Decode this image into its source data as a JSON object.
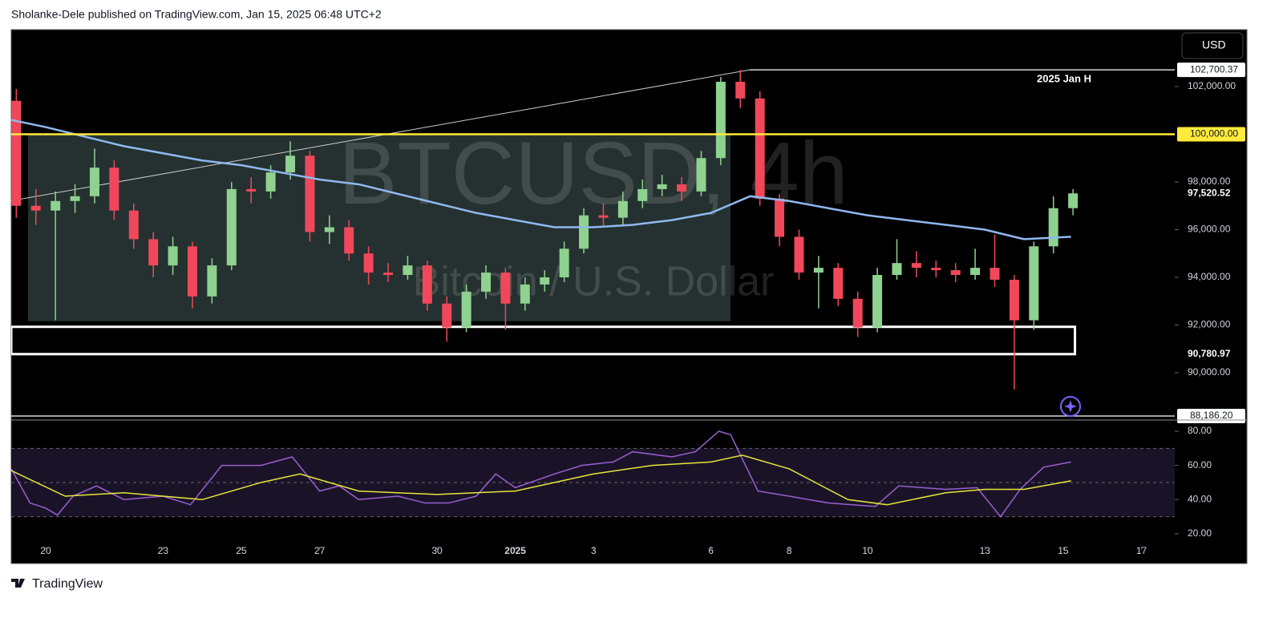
{
  "header": "Sholanke-Dele published on TradingView.com, Jan 15, 2025 06:48 UTC+2",
  "currency_button": "USD",
  "footer_logo": "TradingView",
  "chart_data": [
    {
      "type": "candlestick",
      "watermark_symbol": "BTCUSD, 4h",
      "watermark_name": "Bitcoin / U.S. Dollar",
      "annotation": "2025 Jan H",
      "up_color": "#8fd18f",
      "down_color": "#f0485a",
      "xlim": [
        -0.88,
        28.85
      ],
      "ylim": [
        88085,
        104385
      ],
      "yticks": [
        {
          "value": 90000,
          "label": "90,000.00"
        },
        {
          "value": 92000,
          "label": "92,000.00"
        },
        {
          "value": 94000,
          "label": "94,000.00"
        },
        {
          "value": 96000,
          "label": "96,000.00"
        },
        {
          "value": 98000,
          "label": "98,000.00"
        },
        {
          "value": 102000,
          "label": "102,000.00"
        }
      ],
      "x": [
        -0.75,
        -0.25,
        0.25,
        0.75,
        1.25,
        1.75,
        2.25,
        2.75,
        3.25,
        3.75,
        4.25,
        4.75,
        5.25,
        5.75,
        6.25,
        6.75,
        7.25,
        7.75,
        8.25,
        8.75,
        9.25,
        9.75,
        10.25,
        10.75,
        11.25,
        11.75,
        12.25,
        12.75,
        13.25,
        13.75,
        14.25,
        14.75,
        15.25,
        15.75,
        16.25,
        16.75,
        17.25,
        17.75,
        18.25,
        18.75,
        19.25,
        19.75,
        20.25,
        20.75,
        21.25,
        21.75,
        22.25,
        22.75,
        23.25,
        23.75,
        24.25,
        24.75,
        25.25,
        25.75,
        26.25
      ],
      "open": [
        101400,
        97000,
        96800,
        97200,
        97400,
        98600,
        96800,
        95600,
        94500,
        95300,
        93200,
        94500,
        97700,
        97600,
        98400,
        99100,
        95900,
        96100,
        95000,
        94200,
        94100,
        94500,
        92900,
        91900,
        93400,
        94200,
        92900,
        93700,
        94000,
        95200,
        96600,
        96500,
        97200,
        97700,
        97900,
        97600,
        99000,
        102200,
        101500,
        97300,
        95700,
        94200,
        94400,
        93100,
        91900,
        94100,
        94600,
        94400,
        94300,
        94100,
        94400,
        93900,
        92200,
        95300,
        96900
      ],
      "high": [
        101900,
        97700,
        97600,
        97900,
        99400,
        98900,
        97100,
        95900,
        95700,
        95500,
        94800,
        98000,
        98200,
        98700,
        99700,
        99300,
        96600,
        96400,
        95300,
        94600,
        94900,
        94700,
        93200,
        93700,
        94500,
        94400,
        94000,
        94300,
        95500,
        96900,
        97100,
        97600,
        98100,
        98300,
        98200,
        99300,
        102400,
        102700,
        101800,
        97500,
        96000,
        94900,
        94600,
        93400,
        94400,
        95600,
        95100,
        94700,
        94600,
        95200,
        95800,
        94100,
        95500,
        97400,
        97700
      ],
      "low": [
        96500,
        96200,
        92200,
        96700,
        97100,
        96400,
        95200,
        94000,
        94100,
        92700,
        92900,
        94300,
        97100,
        97300,
        98100,
        95500,
        95400,
        94700,
        93700,
        93800,
        93900,
        92600,
        91300,
        91700,
        93100,
        91800,
        92600,
        93400,
        93800,
        95000,
        96100,
        96200,
        96900,
        97400,
        97200,
        97400,
        98700,
        101100,
        97000,
        95300,
        93900,
        92700,
        92800,
        91500,
        91700,
        93900,
        94000,
        94000,
        93800,
        93900,
        93600,
        89300,
        91800,
        95000,
        96600
      ],
      "close": [
        97000,
        96800,
        97200,
        97400,
        98600,
        96800,
        95600,
        94500,
        95300,
        93200,
        94500,
        97700,
        97600,
        98400,
        99100,
        95900,
        96100,
        95000,
        94200,
        94100,
        94500,
        92900,
        91900,
        93400,
        94200,
        92900,
        93700,
        94000,
        95200,
        96600,
        96500,
        97200,
        97700,
        97900,
        97600,
        99000,
        102200,
        101500,
        97300,
        95700,
        94200,
        94400,
        93100,
        91900,
        94100,
        94600,
        94400,
        94300,
        94100,
        94400,
        93900,
        92200,
        95300,
        96900,
        97520.52
      ],
      "last_price": {
        "value": 97520.52,
        "label": "97,520.52"
      },
      "ma": {
        "color": "#90b8f0",
        "x": [
          -0.88,
          0,
          1,
          2,
          3,
          4,
          5,
          6,
          7,
          8,
          9,
          10,
          11,
          12,
          13,
          14,
          15,
          16,
          17,
          18,
          19,
          20,
          21,
          22,
          23,
          24,
          25,
          26.2
        ],
        "values": [
          100600,
          100300,
          99900,
          99500,
          99200,
          98900,
          98700,
          98400,
          98100,
          97900,
          97500,
          97100,
          96700,
          96400,
          96100,
          96100,
          96200,
          96400,
          96700,
          97400,
          97200,
          96900,
          96600,
          96400,
          96200,
          96000,
          95600,
          95700
        ]
      },
      "levels": [
        {
          "value": 102700.37,
          "label": "102,700.37",
          "color": "#ffffff",
          "x_start": 17.99
        },
        {
          "value": 100000,
          "label": "100,000.00",
          "color": "#ffeb3b"
        },
        {
          "value": 90780.97,
          "label": "90,780.97"
        },
        {
          "value": 88186.2,
          "label": "88,186.20",
          "color": "#ffffff"
        }
      ],
      "trend_line": {
        "x": [
          -0.88,
          17.99
        ],
        "y": [
          97210,
          102700.37
        ]
      },
      "range_box": {
        "x": [
          -0.45,
          17.5
        ],
        "y": [
          92160,
          100000
        ]
      },
      "zone": {
        "x": [
          -0.88,
          26.3
        ],
        "y": [
          90780.97,
          91925
        ]
      }
    },
    {
      "type": "line",
      "xlim": [
        -0.88,
        28.85
      ],
      "ylim": [
        13.4,
        83.75
      ],
      "yticks": [
        {
          "value": 20,
          "label": "20.00"
        },
        {
          "value": 40,
          "label": "40.00"
        },
        {
          "value": 60,
          "label": "60.00"
        },
        {
          "value": 80,
          "label": "80.00"
        }
      ],
      "bands": [
        30,
        50,
        70
      ],
      "xticks": [
        {
          "value": 0,
          "label": "20"
        },
        {
          "value": 3,
          "label": "23"
        },
        {
          "value": 5,
          "label": "25"
        },
        {
          "value": 7,
          "label": "27"
        },
        {
          "value": 10,
          "label": "30"
        },
        {
          "value": 12,
          "label": "2025"
        },
        {
          "value": 14,
          "label": "3"
        },
        {
          "value": 17,
          "label": "6"
        },
        {
          "value": 19,
          "label": "8"
        },
        {
          "value": 21,
          "label": "10"
        },
        {
          "value": 24,
          "label": "13"
        },
        {
          "value": 26,
          "label": "15"
        },
        {
          "value": 28,
          "label": "17"
        }
      ],
      "series": [
        {
          "color": "#9a5fd0",
          "x": [
            -0.88,
            -0.4,
            0,
            0.3,
            0.7,
            1.3,
            2,
            3,
            3.7,
            4.5,
            5.5,
            6.3,
            7,
            7.5,
            8,
            9,
            9.7,
            10.3,
            11,
            11.5,
            12,
            13,
            13.7,
            14.5,
            15,
            16,
            16.6,
            17.2,
            17.5,
            18.2,
            19,
            20,
            21.2,
            21.8,
            23,
            23.8,
            24.4,
            24.9,
            25.5,
            26.2
          ],
          "values": [
            58,
            38,
            35,
            31,
            42,
            48,
            40,
            42,
            37,
            60,
            60,
            65,
            45,
            48,
            40,
            42,
            38,
            38,
            42,
            55,
            47,
            55,
            60,
            62,
            68,
            65,
            68,
            80,
            78,
            45,
            42,
            38,
            36,
            48,
            46,
            47,
            30,
            46,
            59,
            62
          ]
        },
        {
          "color": "#e6e63a",
          "x": [
            -0.88,
            0.5,
            2,
            4,
            5.5,
            6.5,
            8,
            10,
            12,
            14,
            15.5,
            17,
            17.8,
            19,
            20.5,
            21.5,
            23,
            24,
            25,
            26.2
          ],
          "values": [
            57,
            42,
            44,
            40,
            50,
            55,
            45,
            43,
            45,
            55,
            60,
            62,
            66,
            58,
            40,
            37,
            44,
            46,
            46,
            51
          ]
        }
      ]
    }
  ]
}
